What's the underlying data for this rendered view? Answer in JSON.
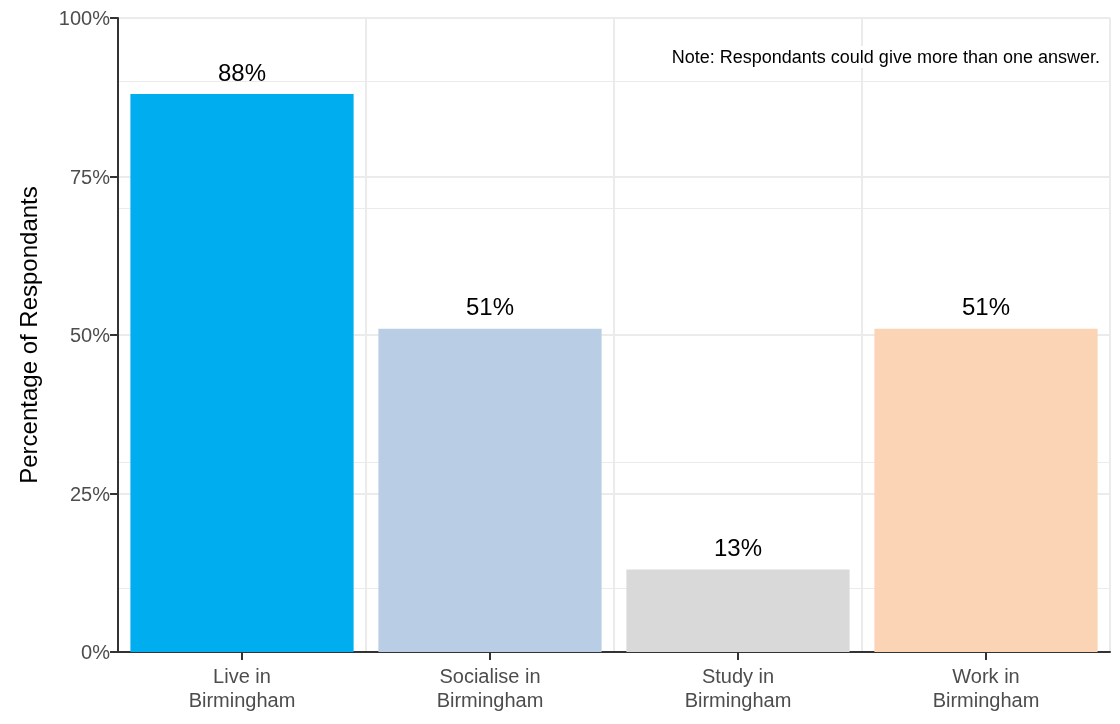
{
  "chart_data": {
    "type": "bar",
    "ylabel": "Percentage of Respondants",
    "categories": [
      "Live in\nBirmingham",
      "Socialise in\nBirmingham",
      "Study in\nBirmingham",
      "Work in\nBirmingham"
    ],
    "values": [
      88,
      51,
      13,
      51
    ],
    "colors": [
      "#00aeef",
      "#b9cde5",
      "#d9d9d9",
      "#fad4b4"
    ],
    "value_labels": [
      "88%",
      "51%",
      "13%",
      "51%"
    ],
    "ylim": [
      0,
      100
    ],
    "yticks": [
      {
        "value": 0,
        "label": "0%"
      },
      {
        "value": 25,
        "label": "25%"
      },
      {
        "value": 50,
        "label": "50%"
      },
      {
        "value": 75,
        "label": "75%"
      },
      {
        "value": 100,
        "label": "100%"
      }
    ],
    "grid": true,
    "annotations": [
      "Note: Respondants could give more than one answer."
    ]
  }
}
